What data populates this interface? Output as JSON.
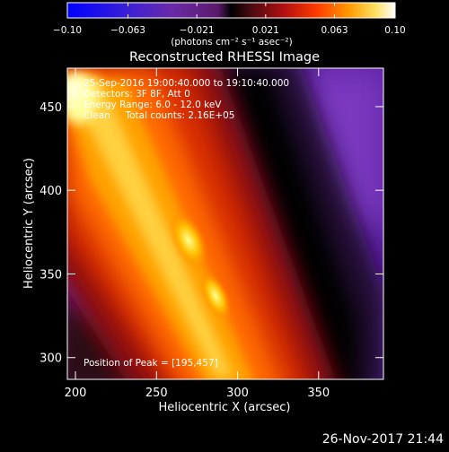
{
  "colorbar": {
    "tick_labels": [
      "−0.10",
      "−0.063",
      "−0.021",
      "0.021",
      "0.063",
      "0.10"
    ],
    "tick_values": [
      -0.1,
      -0.063,
      -0.021,
      0.021,
      0.063,
      0.1
    ],
    "range": [
      -0.1,
      0.1
    ],
    "units_label": "(photons cm⁻² s⁻¹ asec⁻²)"
  },
  "image": {
    "title": "Reconstructed RHESSI Image",
    "info_lines": [
      "25-Sep-2016 19:00:40.000 to 19:10:40.000",
      "Detectors: 3F 8F, Att 0",
      "Energy Range: 6.0 - 12.0 keV",
      "Clean     Total counts: 2.16E+05"
    ],
    "peak_label": "Position of Peak = [195,457]",
    "peak_position": [
      195,
      457
    ]
  },
  "axes": {
    "x_label": "Heliocentric X (arcsec)",
    "y_label": "Heliocentric Y (arcsec)",
    "x_range": [
      195,
      390
    ],
    "y_range": [
      287,
      473
    ],
    "x_ticks": [
      200,
      250,
      300,
      350
    ],
    "y_ticks": [
      300,
      350,
      400,
      450
    ]
  },
  "footer": {
    "timestamp": "26-Nov-2017 21:44"
  }
}
